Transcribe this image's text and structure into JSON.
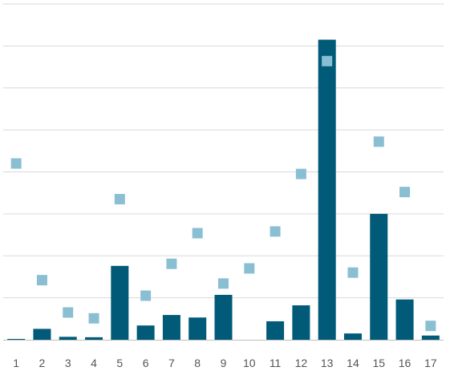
{
  "chart_data": {
    "type": "bar",
    "categories": [
      "1",
      "2",
      "3",
      "4",
      "5",
      "6",
      "7",
      "8",
      "9",
      "10",
      "11",
      "12",
      "13",
      "14",
      "15",
      "16",
      "17"
    ],
    "series": [
      {
        "type": "bar",
        "values": [
          0.2,
          2.6,
          0.7,
          0.6,
          17.6,
          3.4,
          5.9,
          5.3,
          10.7,
          0.0,
          4.4,
          8.2,
          71.5,
          1.5,
          30.0,
          9.6,
          1.0
        ]
      },
      {
        "type": "scatter",
        "values": [
          42.0,
          14.2,
          6.5,
          5.1,
          33.5,
          10.5,
          18.1,
          25.4,
          13.4,
          17.0,
          25.8,
          39.5,
          66.4,
          16.0,
          47.2,
          35.2,
          3.3
        ]
      }
    ],
    "ylim": [
      0,
      80
    ],
    "grid": true,
    "colors": {
      "bar": "#005a78",
      "marker": "#8abfd3"
    }
  }
}
